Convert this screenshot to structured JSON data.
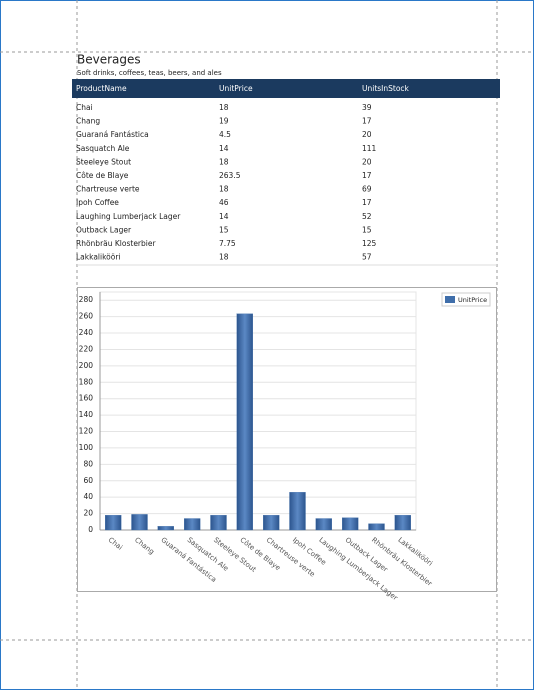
{
  "header": {
    "title": "Beverages",
    "subtitle": "Soft drinks, coffees, teas, beers, and ales"
  },
  "table": {
    "columns": [
      "ProductName",
      "UnitPrice",
      "UnitsInStock"
    ],
    "rows": [
      [
        "Chai",
        18,
        39
      ],
      [
        "Chang",
        19,
        17
      ],
      [
        "Guaraná Fantástica",
        4.5,
        20
      ],
      [
        "Sasquatch Ale",
        14,
        111
      ],
      [
        "Steeleye Stout",
        18,
        20
      ],
      [
        "Côte de Blaye",
        263.5,
        17
      ],
      [
        "Chartreuse verte",
        18,
        69
      ],
      [
        "Ipoh Coffee",
        46,
        17
      ],
      [
        "Laughing Lumberjack Lager",
        14,
        52
      ],
      [
        "Outback Lager",
        15,
        15
      ],
      [
        "Rhönbräu Klosterbier",
        7.75,
        125
      ],
      [
        "Lakkalikööri",
        18,
        57
      ]
    ]
  },
  "chart_data": {
    "type": "bar",
    "categories": [
      "Chai",
      "Chang",
      "Guaraná Fantástica",
      "Sasquatch Ale",
      "Steeleye Stout",
      "Côte de Blaye",
      "Chartreuse verte",
      "Ipoh Coffee",
      "Laughing Lumberjack Lager",
      "Outback Lager",
      "Rhönbräu Klosterbier",
      "Lakkalikööri"
    ],
    "series": [
      {
        "name": "UnitPrice",
        "color": "#3f6eaa",
        "values": [
          18,
          19,
          4.5,
          14,
          18,
          263.5,
          18,
          46,
          14,
          15,
          7.75,
          18
        ]
      }
    ],
    "ylim": [
      0,
      290
    ],
    "yticks": [
      0,
      20,
      40,
      60,
      80,
      100,
      120,
      140,
      160,
      180,
      200,
      220,
      240,
      260,
      280
    ],
    "grid": true,
    "legend": "top-right"
  }
}
